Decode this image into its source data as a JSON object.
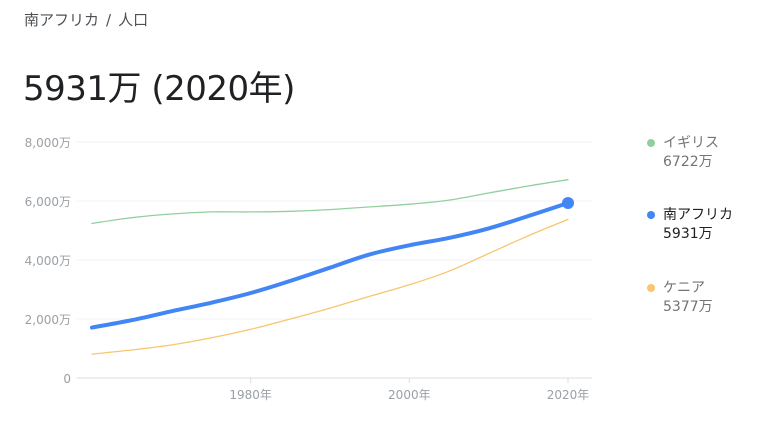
{
  "breadcrumb": {
    "country": "南アフリカ",
    "separator": "/",
    "topic": "人口"
  },
  "headline": {
    "value": "5931万",
    "year": "(2020年)"
  },
  "legend": [
    {
      "name": "イギリス",
      "value": "6722万",
      "color": "#93cf9e"
    },
    {
      "name": "南アフリカ",
      "value": "5931万",
      "color": "#4285f4"
    },
    {
      "name": "ケニア",
      "value": "5377万",
      "color": "#f9c56e"
    }
  ],
  "chart_data": {
    "type": "line",
    "xlim": [
      1960,
      2020
    ],
    "ylim": [
      0,
      8000
    ],
    "y_unit": "万",
    "yticks": [
      {
        "value": 0,
        "label": "0"
      },
      {
        "value": 2000,
        "label": "2,000万"
      },
      {
        "value": 4000,
        "label": "4,000万"
      },
      {
        "value": 6000,
        "label": "6,000万"
      },
      {
        "value": 8000,
        "label": "8,000万"
      }
    ],
    "xticks": [
      {
        "value": 1980,
        "label": "1980年"
      },
      {
        "value": 2000,
        "label": "2000年"
      },
      {
        "value": 2020,
        "label": "2020年"
      }
    ],
    "grid": true,
    "legend_position": "right",
    "highlight_series": "南アフリカ",
    "series": [
      {
        "name": "イギリス",
        "color": "#93cf9e",
        "x": [
          1960,
          1965,
          1970,
          1975,
          1980,
          1985,
          1990,
          1995,
          2000,
          2005,
          2010,
          2015,
          2020
        ],
        "values": [
          5240,
          5435,
          5560,
          5630,
          5630,
          5650,
          5710,
          5800,
          5890,
          6030,
          6270,
          6510,
          6722
        ]
      },
      {
        "name": "南アフリカ",
        "color": "#4285f4",
        "x": [
          1960,
          1965,
          1970,
          1975,
          1980,
          1985,
          1990,
          1995,
          2000,
          2005,
          2010,
          2015,
          2020
        ],
        "values": [
          1710,
          1960,
          2260,
          2550,
          2880,
          3290,
          3740,
          4190,
          4500,
          4750,
          5070,
          5490,
          5931
        ]
      },
      {
        "name": "ケニア",
        "color": "#f9c56e",
        "x": [
          1960,
          1965,
          1970,
          1975,
          1980,
          1985,
          1990,
          1995,
          2000,
          2005,
          2010,
          2015,
          2020
        ],
        "values": [
          810,
          950,
          1120,
          1360,
          1650,
          2000,
          2370,
          2770,
          3160,
          3620,
          4220,
          4820,
          5377
        ]
      }
    ]
  }
}
